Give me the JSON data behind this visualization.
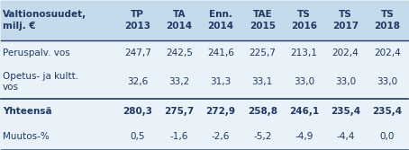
{
  "header_col": "Valtionosuudet,\nmilj. €",
  "headers": [
    "TP\n2013",
    "TA\n2014",
    "Enn.\n2014",
    "TAE\n2015",
    "TS\n2016",
    "TS\n2017",
    "TS\n2018"
  ],
  "rows": [
    {
      "label": "Peruspalv. vos",
      "values": [
        "247,7",
        "242,5",
        "241,6",
        "225,7",
        "213,1",
        "202,4",
        "202,4"
      ],
      "bold": false,
      "label_wrap": false
    },
    {
      "label": "Opetus- ja kultt.\nvos",
      "values": [
        "32,6",
        "33,2",
        "31,3",
        "33,1",
        "33,0",
        "33,0",
        "33,0"
      ],
      "bold": false,
      "label_wrap": true
    },
    {
      "label": "Yhteensä",
      "values": [
        "280,3",
        "275,7",
        "272,9",
        "258,8",
        "246,1",
        "235,4",
        "235,4"
      ],
      "bold": true,
      "label_wrap": false
    },
    {
      "label": "Muutos-%",
      "values": [
        "0,5",
        "-1,6",
        "-2,6",
        "-5,2",
        "-4,9",
        "-4,4",
        "0,0"
      ],
      "bold": false,
      "label_wrap": false
    }
  ],
  "header_bg": "#c5daea",
  "row_bg": "#e8f2f8",
  "separator_before": [
    2
  ],
  "text_color": "#1f3864",
  "header_text_color": "#1f3864",
  "font_size": 7.5,
  "header_font_size": 7.5
}
